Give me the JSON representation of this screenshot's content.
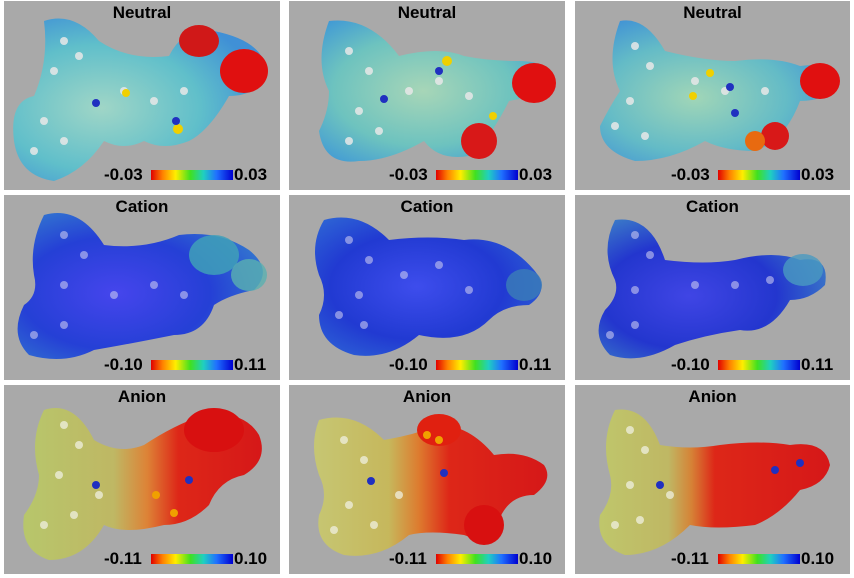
{
  "panels": [
    {
      "id": "neutral-1",
      "title": "Neutral",
      "min": "-0.03",
      "max": "0.03",
      "surface": "neutral"
    },
    {
      "id": "neutral-2",
      "title": "Neutral",
      "min": "-0.03",
      "max": "0.03",
      "surface": "neutral"
    },
    {
      "id": "neutral-3",
      "title": "Neutral",
      "min": "-0.03",
      "max": "0.03",
      "surface": "neutral"
    },
    {
      "id": "cation-1",
      "title": "Cation",
      "min": "-0.10",
      "max": "0.11",
      "surface": "cation"
    },
    {
      "id": "cation-2",
      "title": "Cation",
      "min": "-0.10",
      "max": "0.11",
      "surface": "cation"
    },
    {
      "id": "cation-3",
      "title": "Cation",
      "min": "-0.10",
      "max": "0.11",
      "surface": "cation"
    },
    {
      "id": "anion-1",
      "title": "Anion",
      "min": "-0.11",
      "max": "0.10",
      "surface": "anion"
    },
    {
      "id": "anion-2",
      "title": "Anion",
      "min": "-0.11",
      "max": "0.10",
      "surface": "anion"
    },
    {
      "id": "anion-3",
      "title": "Anion",
      "min": "-0.11",
      "max": "0.10",
      "surface": "anion"
    }
  ],
  "colors": {
    "panel_bg": "#a9a9a9",
    "neutral_surface": "#5fbcc4",
    "cation_surface": "#1c2fd6",
    "anion_left": "#b8c860",
    "anion_right": "#e01a10"
  }
}
